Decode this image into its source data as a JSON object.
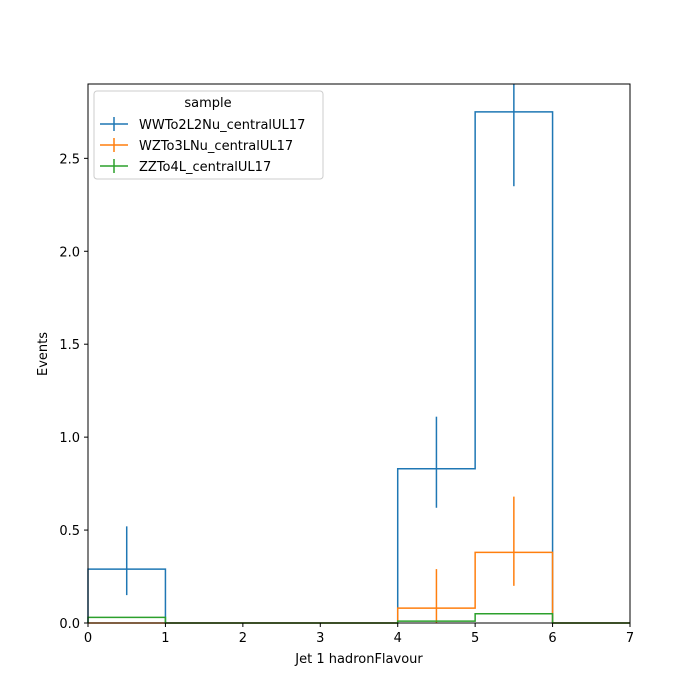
{
  "chart_data": {
    "type": "histogram-step",
    "title": "",
    "xlabel": "Jet 1 hadronFlavour",
    "ylabel": "Events",
    "xlim": [
      0,
      7
    ],
    "ylim": [
      0,
      2.9
    ],
    "xticks": [
      "0",
      "1",
      "2",
      "3",
      "4",
      "5",
      "6",
      "7"
    ],
    "yticks": [
      "0.0",
      "0.5",
      "1.0",
      "1.5",
      "2.0",
      "2.5"
    ],
    "grid": false,
    "legend": {
      "title": "sample",
      "placement": "top-left"
    },
    "bin_edges": [
      0,
      1,
      2,
      3,
      4,
      5,
      6,
      7
    ],
    "series": [
      {
        "name": "WWTo2L2Nu_centralUL17",
        "color": "#1f77b4",
        "values": [
          0.29,
          0,
          0,
          0,
          0.83,
          2.75,
          0
        ],
        "errors": [
          [
            0.15,
            0.52
          ],
          null,
          null,
          null,
          [
            0.62,
            1.11
          ],
          [
            2.35,
            2.9
          ],
          null
        ]
      },
      {
        "name": "WZTo3LNu_centralUL17",
        "color": "#ff7f0e",
        "values": [
          0,
          0,
          0,
          0,
          0.08,
          0.38,
          0
        ],
        "errors": [
          null,
          null,
          null,
          null,
          [
            0.0,
            0.29
          ],
          [
            0.2,
            0.68
          ],
          null
        ]
      },
      {
        "name": "ZZTo4L_centralUL17",
        "color": "#2ca02c",
        "values": [
          0.03,
          0,
          0,
          0,
          0.01,
          0.05,
          0
        ],
        "errors": [
          null,
          null,
          null,
          null,
          null,
          null,
          null
        ]
      }
    ]
  }
}
